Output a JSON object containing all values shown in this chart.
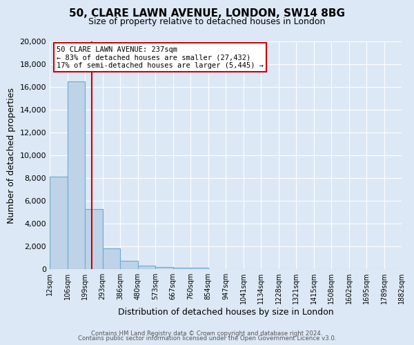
{
  "title": "50, CLARE LAWN AVENUE, LONDON, SW14 8BG",
  "subtitle": "Size of property relative to detached houses in London",
  "xlabel": "Distribution of detached houses by size in London",
  "ylabel": "Number of detached properties",
  "bar_values": [
    8100,
    16500,
    5300,
    1800,
    750,
    300,
    200,
    150,
    100,
    0,
    0,
    0,
    0,
    0,
    0,
    0,
    0,
    0,
    0,
    0
  ],
  "bar_color": "#bed3e8",
  "bar_edge_color": "#6aaad4",
  "bg_color": "#dce8f5",
  "grid_color": "#ffffff",
  "vline_color": "#cc0000",
  "ylim": [
    0,
    20000
  ],
  "yticks": [
    0,
    2000,
    4000,
    6000,
    8000,
    10000,
    12000,
    14000,
    16000,
    18000,
    20000
  ],
  "annotation_title": "50 CLARE LAWN AVENUE: 237sqm",
  "annotation_line1": "← 83% of detached houses are smaller (27,432)",
  "annotation_line2": "17% of semi-detached houses are larger (5,445) →",
  "footer1": "Contains HM Land Registry data © Crown copyright and database right 2024.",
  "footer2": "Contains public sector information licensed under the Open Government Licence v3.0.",
  "bin_edges": [
    12,
    106,
    199,
    293,
    386,
    480,
    573,
    667,
    760,
    854,
    947,
    1041,
    1134,
    1228,
    1321,
    1415,
    1508,
    1602,
    1695,
    1789,
    1882
  ],
  "title_fontsize": 11,
  "subtitle_fontsize": 9
}
